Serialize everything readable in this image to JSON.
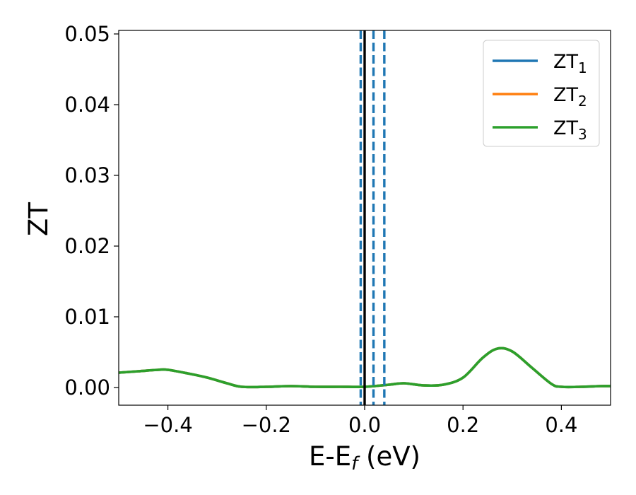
{
  "chart_data": {
    "type": "line",
    "xlabel": {
      "main": "E-E",
      "sub": "f",
      "suffix": " (eV)"
    },
    "ylabel": "ZT",
    "xlim": [
      -0.5,
      0.5
    ],
    "ylim": [
      -0.0025,
      0.0505
    ],
    "xticks": [
      -0.4,
      -0.2,
      0.0,
      0.2,
      0.4
    ],
    "xtick_labels": [
      "−0.4",
      "−0.2",
      "0.0",
      "0.2",
      "0.4"
    ],
    "yticks": [
      0.0,
      0.01,
      0.02,
      0.03,
      0.04,
      0.05
    ],
    "ytick_labels": [
      "0.00",
      "0.01",
      "0.02",
      "0.03",
      "0.04",
      "0.05"
    ],
    "grid": false,
    "legend_position": "top-right",
    "vertical_lines": [
      {
        "x": 0.0,
        "style": "solid",
        "color": "#000000"
      },
      {
        "x": -0.008,
        "style": "dashed",
        "color": "#1f77b4"
      },
      {
        "x": 0.018,
        "style": "dashed",
        "color": "#1f77b4"
      },
      {
        "x": 0.04,
        "style": "dashed",
        "color": "#1f77b4"
      }
    ],
    "x": [
      -0.5,
      -0.46,
      -0.42,
      -0.4,
      -0.36,
      -0.32,
      -0.28,
      -0.25,
      -0.2,
      -0.15,
      -0.1,
      -0.05,
      0.0,
      0.05,
      0.08,
      0.12,
      0.16,
      0.2,
      0.24,
      0.27,
      0.3,
      0.34,
      0.38,
      0.4,
      0.44,
      0.48,
      0.5
    ],
    "series": [
      {
        "name": "ZT",
        "sub": "1",
        "color": "#1f77b4",
        "values": [
          0.0021,
          0.0023,
          0.0025,
          0.0025,
          0.002,
          0.0014,
          0.0006,
          0.0001,
          0.0001,
          0.0002,
          0.0001,
          0.0001,
          0.0001,
          0.0004,
          0.0006,
          0.0003,
          0.0004,
          0.0014,
          0.0042,
          0.0055,
          0.0051,
          0.0028,
          0.0005,
          0.0001,
          0.0001,
          0.0002,
          0.0002
        ]
      },
      {
        "name": "ZT",
        "sub": "2",
        "color": "#ff7f0e",
        "values": [
          0.0021,
          0.0023,
          0.0025,
          0.0025,
          0.002,
          0.0014,
          0.0006,
          0.0001,
          0.0001,
          0.0002,
          0.0001,
          0.0001,
          0.0001,
          0.0004,
          0.0006,
          0.0003,
          0.0004,
          0.0014,
          0.0042,
          0.0055,
          0.0051,
          0.0028,
          0.0005,
          0.0001,
          0.0001,
          0.0002,
          0.0002
        ]
      },
      {
        "name": "ZT",
        "sub": "3",
        "color": "#2ca02c",
        "values": [
          0.0021,
          0.0023,
          0.0025,
          0.0025,
          0.002,
          0.0014,
          0.0006,
          0.0001,
          0.0001,
          0.0002,
          0.0001,
          0.0001,
          0.0001,
          0.0004,
          0.0006,
          0.0003,
          0.0004,
          0.0014,
          0.0042,
          0.0055,
          0.0051,
          0.0028,
          0.0005,
          0.0001,
          0.0001,
          0.0002,
          0.0002
        ]
      }
    ]
  }
}
